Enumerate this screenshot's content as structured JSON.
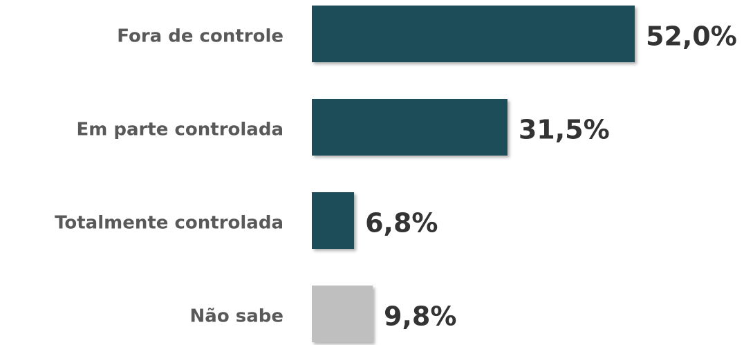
{
  "chart_data": {
    "type": "bar",
    "orientation": "horizontal",
    "categories": [
      "Fora de controle",
      "Em parte controlada",
      "Totalmente controlada",
      "Não sabe"
    ],
    "values": [
      52.0,
      31.5,
      6.8,
      9.8
    ],
    "value_labels": [
      "52,0%",
      "31,5%",
      "6,8%",
      "9,8%"
    ],
    "colors": [
      "#1d4d58",
      "#1d4d58",
      "#1d4d58",
      "#bfbfbf"
    ]
  }
}
